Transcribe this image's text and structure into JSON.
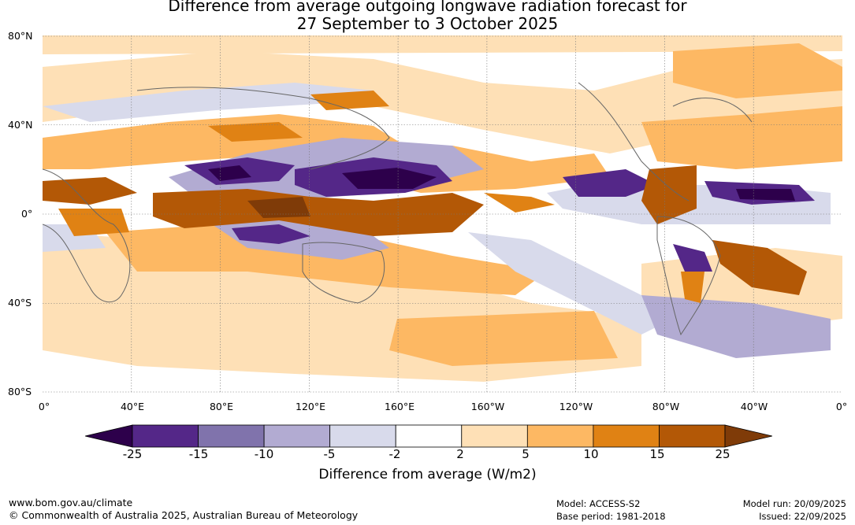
{
  "title": {
    "line1": "Difference from average outgoing longwave radiation forecast for",
    "line2": "27 September to 3 October 2025"
  },
  "latitude_labels": [
    "80°N",
    "40°N",
    "0°",
    "40°S",
    "80°S"
  ],
  "longitude_labels": [
    "0°",
    "40°E",
    "80°E",
    "120°E",
    "160°E",
    "160°W",
    "120°W",
    "80°W",
    "40°W",
    "0°"
  ],
  "colorbar": {
    "boundaries": [
      "-25",
      "-15",
      "-10",
      "-5",
      "-2",
      "2",
      "5",
      "10",
      "15",
      "25"
    ],
    "colors": [
      "#2d004b",
      "#542788",
      "#8073ac",
      "#b2abd2",
      "#d8daeb",
      "#ffffff",
      "#fee0b6",
      "#fdb863",
      "#e08214",
      "#b35806",
      "#7f3b08"
    ],
    "title": "Difference from average (W/m2)"
  },
  "footer": {
    "website": "www.bom.gov.au/climate",
    "copyright": "© Commonwealth of Australia 2025, Australian Bureau of Meteorology",
    "model": "Model: ACCESS-S2",
    "base_period": "Base period: 1981-2018",
    "model_run": "Model run: 20/09/2025",
    "issued": "Issued: 22/09/2025"
  }
}
